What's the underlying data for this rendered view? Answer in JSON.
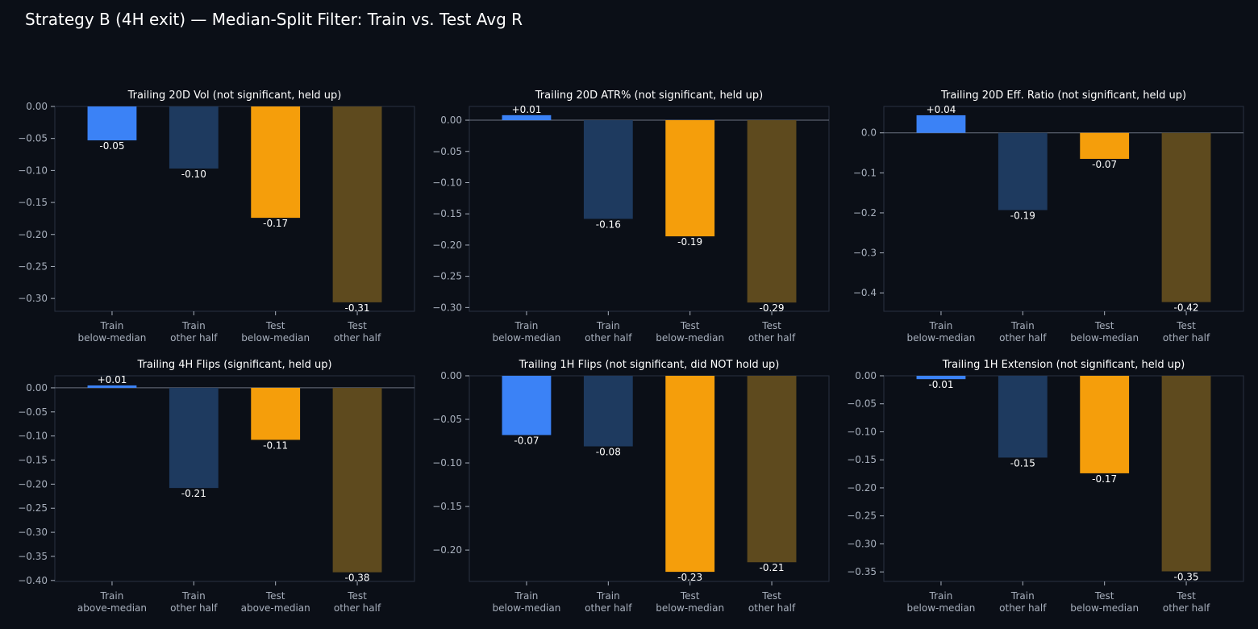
{
  "figure": {
    "title": "Strategy B (4H exit) — Median-Split Filter: Train vs. Test Avg R",
    "background": "#0b0f17",
    "panel_background": "#0b0f17",
    "panel_border": "#2a3140",
    "text_color": "#ffffff",
    "tick_color": "#a8b0bd",
    "zero_line_color": "#6b7280",
    "bar_colors": [
      "#3b82f6",
      "#1e3a5f",
      "#f59e0b",
      "#5e4a1e"
    ]
  },
  "chart_data": [
    {
      "type": "bar",
      "title": "Trailing 20D Vol (not significant, held up)",
      "categories": [
        [
          "Train",
          "below-median"
        ],
        [
          "Train",
          "other half"
        ],
        [
          "Test",
          "below-median"
        ],
        [
          "Test",
          "other half"
        ]
      ],
      "values": [
        -0.053,
        -0.097,
        -0.174,
        -0.306
      ],
      "labels": [
        "-0.05",
        "-0.10",
        "-0.17",
        "-0.31"
      ],
      "ylim": [
        -0.32,
        0.0
      ],
      "yticks": [
        0.0,
        -0.05,
        -0.1,
        -0.15,
        -0.2,
        -0.25,
        -0.3
      ],
      "ytick_labels": [
        "0.00",
        "−0.05",
        "−0.10",
        "−0.15",
        "−0.20",
        "−0.25",
        "−0.30"
      ],
      "xlabel": "",
      "ylabel": ""
    },
    {
      "type": "bar",
      "title": "Trailing 20D ATR% (not significant, held up)",
      "categories": [
        [
          "Train",
          "below-median"
        ],
        [
          "Train",
          "other half"
        ],
        [
          "Test",
          "below-median"
        ],
        [
          "Test",
          "other half"
        ]
      ],
      "values": [
        0.008,
        -0.158,
        -0.186,
        -0.292
      ],
      "labels": [
        "+0.01",
        "-0.16",
        "-0.19",
        "-0.29"
      ],
      "ylim": [
        -0.306,
        0.022
      ],
      "yticks": [
        0.0,
        -0.05,
        -0.1,
        -0.15,
        -0.2,
        -0.25,
        -0.3
      ],
      "ytick_labels": [
        "0.00",
        "−0.05",
        "−0.10",
        "−0.15",
        "−0.20",
        "−0.25",
        "−0.30"
      ],
      "xlabel": "",
      "ylabel": ""
    },
    {
      "type": "bar",
      "title": "Trailing 20D Eff. Ratio (not significant, held up)",
      "categories": [
        [
          "Train",
          "below-median"
        ],
        [
          "Train",
          "other half"
        ],
        [
          "Test",
          "below-median"
        ],
        [
          "Test",
          "other half"
        ]
      ],
      "values": [
        0.044,
        -0.193,
        -0.065,
        -0.423
      ],
      "labels": [
        "+0.04",
        "-0.19",
        "-0.07",
        "-0.42"
      ],
      "ylim": [
        -0.446,
        0.066
      ],
      "yticks": [
        0.0,
        -0.1,
        -0.2,
        -0.3,
        -0.4
      ],
      "ytick_labels": [
        "0.0",
        "−0.1",
        "−0.2",
        "−0.3",
        "−0.4"
      ],
      "xlabel": "",
      "ylabel": ""
    },
    {
      "type": "bar",
      "title": "Trailing 4H Flips (significant, held up)",
      "categories": [
        [
          "Train",
          "above-median"
        ],
        [
          "Train",
          "other half"
        ],
        [
          "Test",
          "above-median"
        ],
        [
          "Test",
          "other half"
        ]
      ],
      "values": [
        0.005,
        -0.208,
        -0.108,
        -0.383
      ],
      "labels": [
        "+0.01",
        "-0.21",
        "-0.11",
        "-0.38"
      ],
      "ylim": [
        -0.402,
        0.025
      ],
      "yticks": [
        0.0,
        -0.05,
        -0.1,
        -0.15,
        -0.2,
        -0.25,
        -0.3,
        -0.35,
        -0.4
      ],
      "ytick_labels": [
        "0.00",
        "−0.05",
        "−0.10",
        "−0.15",
        "−0.20",
        "−0.25",
        "−0.30",
        "−0.35",
        "−0.40"
      ],
      "xlabel": "",
      "ylabel": ""
    },
    {
      "type": "bar",
      "title": "Trailing 1H Flips (not significant, did NOT hold up)",
      "categories": [
        [
          "Train",
          "below-median"
        ],
        [
          "Train",
          "other half"
        ],
        [
          "Test",
          "below-median"
        ],
        [
          "Test",
          "other half"
        ]
      ],
      "values": [
        -0.068,
        -0.081,
        -0.225,
        -0.214
      ],
      "labels": [
        "-0.07",
        "-0.08",
        "-0.23",
        "-0.21"
      ],
      "ylim": [
        -0.236,
        0.0
      ],
      "yticks": [
        0.0,
        -0.05,
        -0.1,
        -0.15,
        -0.2
      ],
      "ytick_labels": [
        "0.00",
        "−0.05",
        "−0.10",
        "−0.15",
        "−0.20"
      ],
      "xlabel": "",
      "ylabel": ""
    },
    {
      "type": "bar",
      "title": "Trailing 1H Extension (not significant, held up)",
      "categories": [
        [
          "Train",
          "below-median"
        ],
        [
          "Train",
          "other half"
        ],
        [
          "Test",
          "below-median"
        ],
        [
          "Test",
          "other half"
        ]
      ],
      "values": [
        -0.006,
        -0.146,
        -0.174,
        -0.349
      ],
      "labels": [
        "-0.01",
        "-0.15",
        "-0.17",
        "-0.35"
      ],
      "ylim": [
        -0.367,
        0.0
      ],
      "yticks": [
        0.0,
        -0.05,
        -0.1,
        -0.15,
        -0.2,
        -0.25,
        -0.3,
        -0.35
      ],
      "ytick_labels": [
        "0.00",
        "−0.05",
        "−0.10",
        "−0.15",
        "−0.20",
        "−0.25",
        "−0.30",
        "−0.35"
      ],
      "xlabel": "",
      "ylabel": ""
    }
  ]
}
